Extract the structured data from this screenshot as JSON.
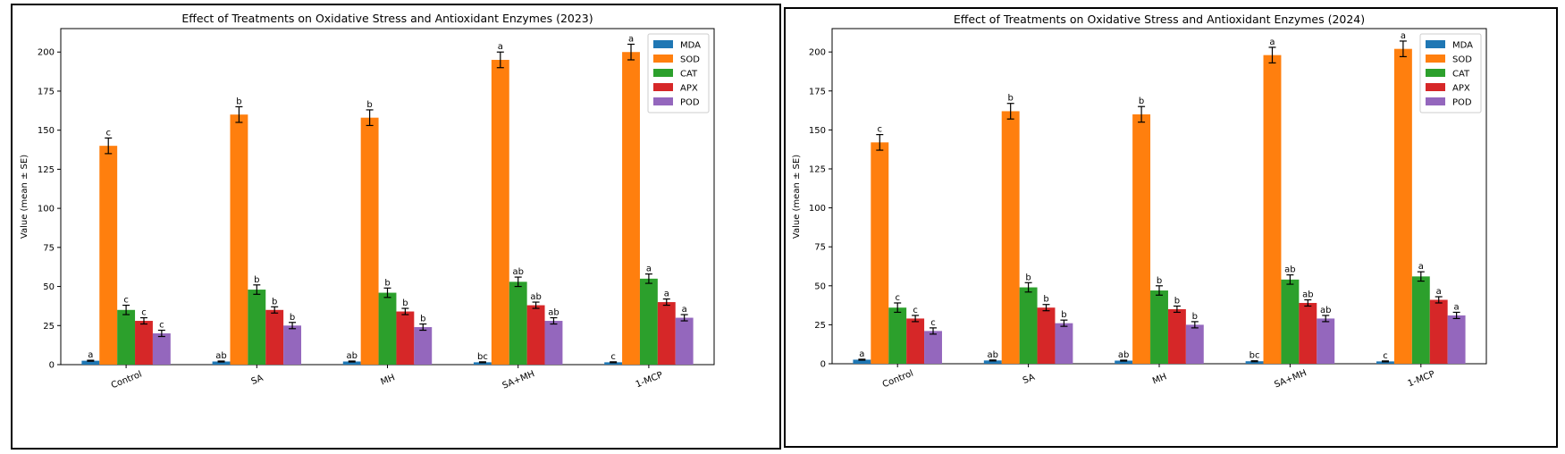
{
  "colors": {
    "MDA": "#1f77b4",
    "SOD": "#ff7f0e",
    "CAT": "#2ca02c",
    "APX": "#d62728",
    "POD": "#9467bd"
  },
  "chart_data": [
    {
      "type": "bar",
      "title": "Effect of Treatments on Oxidative Stress and Antioxidant Enzymes (2023)",
      "xlabel": "",
      "ylabel": "Value (mean ± SE)",
      "ylim": [
        0,
        215
      ],
      "yticks": [
        0,
        25,
        50,
        75,
        100,
        125,
        150,
        175,
        200
      ],
      "legend": "top-right",
      "categories": [
        "Control",
        "SA",
        "MH",
        "SA+MH",
        "1-MCP"
      ],
      "series": [
        {
          "name": "MDA",
          "values": [
            2.5,
            2.0,
            2.0,
            1.5,
            1.5
          ],
          "errors": [
            0.3,
            0.3,
            0.3,
            0.3,
            0.3
          ],
          "letters": [
            "a",
            "ab",
            "ab",
            "bc",
            "c"
          ]
        },
        {
          "name": "SOD",
          "values": [
            140,
            160,
            158,
            195,
            200
          ],
          "errors": [
            5,
            5,
            5,
            5,
            5
          ],
          "letters": [
            "c",
            "b",
            "b",
            "a",
            "a"
          ]
        },
        {
          "name": "CAT",
          "values": [
            35,
            48,
            46,
            53,
            55
          ],
          "errors": [
            3,
            3,
            3,
            3,
            3
          ],
          "letters": [
            "c",
            "b",
            "b",
            "ab",
            "a"
          ]
        },
        {
          "name": "APX",
          "values": [
            28,
            35,
            34,
            38,
            40
          ],
          "errors": [
            2,
            2,
            2,
            2,
            2
          ],
          "letters": [
            "c",
            "b",
            "b",
            "ab",
            "a"
          ]
        },
        {
          "name": "POD",
          "values": [
            20,
            25,
            24,
            28,
            30
          ],
          "errors": [
            2,
            2,
            2,
            2,
            2
          ],
          "letters": [
            "c",
            "b",
            "b",
            "ab",
            "a"
          ]
        }
      ]
    },
    {
      "type": "bar",
      "title": "Effect of Treatments on Oxidative Stress and Antioxidant Enzymes (2024)",
      "xlabel": "",
      "ylabel": "Value (mean ± SE)",
      "ylim": [
        0,
        215
      ],
      "yticks": [
        0,
        25,
        50,
        75,
        100,
        125,
        150,
        175,
        200
      ],
      "legend": "top-right",
      "categories": [
        "Control",
        "SA",
        "MH",
        "SA+MH",
        "1-MCP"
      ],
      "series": [
        {
          "name": "MDA",
          "values": [
            2.6,
            2.1,
            2.0,
            1.6,
            1.5
          ],
          "errors": [
            0.3,
            0.3,
            0.3,
            0.3,
            0.3
          ],
          "letters": [
            "a",
            "ab",
            "ab",
            "bc",
            "c"
          ]
        },
        {
          "name": "SOD",
          "values": [
            142,
            162,
            160,
            198,
            202
          ],
          "errors": [
            5,
            5,
            5,
            5,
            5
          ],
          "letters": [
            "c",
            "b",
            "b",
            "a",
            "a"
          ]
        },
        {
          "name": "CAT",
          "values": [
            36,
            49,
            47,
            54,
            56
          ],
          "errors": [
            3,
            3,
            3,
            3,
            3
          ],
          "letters": [
            "c",
            "b",
            "b",
            "ab",
            "a"
          ]
        },
        {
          "name": "APX",
          "values": [
            29,
            36,
            35,
            39,
            41
          ],
          "errors": [
            2,
            2,
            2,
            2,
            2
          ],
          "letters": [
            "c",
            "b",
            "b",
            "ab",
            "a"
          ]
        },
        {
          "name": "POD",
          "values": [
            21,
            26,
            25,
            29,
            31
          ],
          "errors": [
            2,
            2,
            2,
            2,
            2
          ],
          "letters": [
            "c",
            "b",
            "b",
            "ab",
            "a"
          ]
        }
      ]
    }
  ]
}
